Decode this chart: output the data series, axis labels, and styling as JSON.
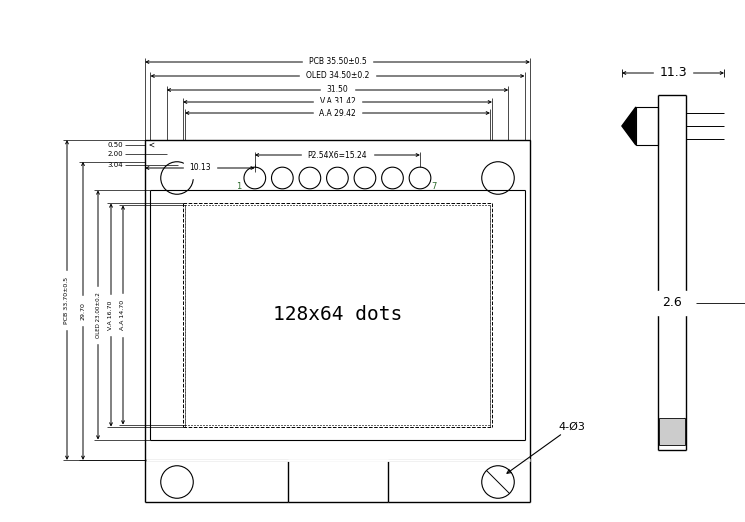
{
  "bg_color": "#ffffff",
  "lc": "#000000",
  "green_color": "#2d6a2d",
  "annotations": {
    "pcb_w_label": "PCB 35.50±0.5",
    "oled_w_label": "OLED 34.50±0.2",
    "w3150": "31.50",
    "va_w": "V.A 31.42",
    "aa_w": "A.A 29.42",
    "p254": "P2.54X6=15.24",
    "d10": "10.13",
    "d050": "0.50",
    "d200": "2.00",
    "d304": "3.04",
    "pcb_h_label": "PCB 33.70±0.5",
    "d2970": "29.70",
    "oled_h_label": "OLED 23.00±0.2",
    "va_h": "V.A 16.70",
    "aa_h": "A.A 14.70",
    "hole_label": "4-Ø3",
    "dots_label": "128x64 dots",
    "side_w": "11.3",
    "side_d": "2.6",
    "pin1": "1",
    "pin7": "7"
  }
}
